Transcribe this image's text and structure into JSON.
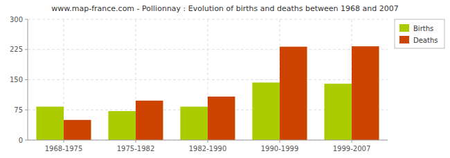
{
  "chart_data": {
    "type": "bar",
    "title": "www.map-france.com - Pollionnay : Evolution of births and deaths between 1968 and 2007",
    "categories": [
      "1968-1975",
      "1975-1982",
      "1982-1990",
      "1990-1999",
      "1999-2007"
    ],
    "series": [
      {
        "name": "Births",
        "color": "#aacc00",
        "values": [
          83,
          72,
          83,
          143,
          140
        ]
      },
      {
        "name": "Deaths",
        "color": "#cc4400",
        "values": [
          50,
          98,
          108,
          232,
          233
        ]
      }
    ],
    "ylim": [
      0,
      300
    ],
    "yticks": [
      0,
      75,
      150,
      225,
      300
    ],
    "grid": true,
    "legend": "upper right"
  }
}
